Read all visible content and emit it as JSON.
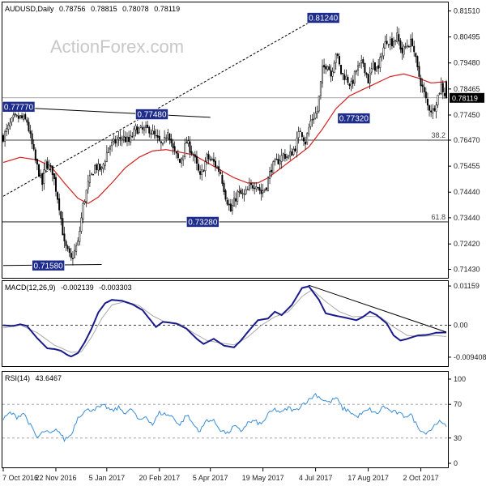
{
  "chart_data": [
    {
      "type": "candlestick",
      "title": "AUDUSD,Daily",
      "ohlc_readout": [
        "0.78756",
        "0.78815",
        "0.78078",
        "0.78119"
      ],
      "watermark": "ActionForex.com",
      "ylim": [
        0.7113,
        0.8181
      ],
      "y_ticks": [
        0.8151,
        0.80495,
        0.7948,
        0.78465,
        0.7745,
        0.7647,
        0.75455,
        0.7444,
        0.7344,
        0.7242,
        0.7143
      ],
      "y_tick_labels": [
        "0.81510",
        "0.80495",
        "0.79480",
        "0.78465",
        "0.77450",
        "0.76470",
        "0.75455",
        "0.74440",
        "0.73440",
        "0.72420",
        "0.71430"
      ],
      "last_price_label": "0.78119",
      "x_tick_labels": [
        "7 Oct 2016",
        "22 Nov 2016",
        "5 Jan 2017",
        "20 Feb 2017",
        "5 Apr 2017",
        "19 May 2017",
        "4 Jul 2017",
        "17 Aug 2017",
        "2 Oct 2017"
      ],
      "x_tick_index": [
        0,
        31,
        61,
        92,
        122,
        153,
        184,
        215,
        246
      ],
      "bar_count": 262,
      "close_anchors": [
        [
          0,
          0.766
        ],
        [
          6,
          0.773
        ],
        [
          10,
          0.7735
        ],
        [
          14,
          0.772
        ],
        [
          19,
          0.7565
        ],
        [
          23,
          0.7475
        ],
        [
          25,
          0.756
        ],
        [
          29,
          0.7525
        ],
        [
          33,
          0.739
        ],
        [
          36,
          0.724
        ],
        [
          40,
          0.718
        ],
        [
          44,
          0.7245
        ],
        [
          47,
          0.739
        ],
        [
          50,
          0.7475
        ],
        [
          54,
          0.7545
        ],
        [
          58,
          0.753
        ],
        [
          62,
          0.762
        ],
        [
          66,
          0.764
        ],
        [
          70,
          0.766
        ],
        [
          74,
          0.764
        ],
        [
          78,
          0.769
        ],
        [
          82,
          0.7685
        ],
        [
          86,
          0.769
        ],
        [
          90,
          0.7655
        ],
        [
          94,
          0.762
        ],
        [
          97,
          0.769
        ],
        [
          100,
          0.761
        ],
        [
          104,
          0.756
        ],
        [
          108,
          0.764
        ],
        [
          112,
          0.759
        ],
        [
          116,
          0.75
        ],
        [
          120,
          0.758
        ],
        [
          124,
          0.756
        ],
        [
          128,
          0.752
        ],
        [
          131,
          0.743
        ],
        [
          134,
          0.737
        ],
        [
          138,
          0.744
        ],
        [
          142,
          0.743
        ],
        [
          145,
          0.746
        ],
        [
          149,
          0.748
        ],
        [
          152,
          0.744
        ],
        [
          155,
          0.747
        ],
        [
          158,
          0.754
        ],
        [
          161,
          0.756
        ],
        [
          165,
          0.759
        ],
        [
          168,
          0.758
        ],
        [
          172,
          0.762
        ],
        [
          175,
          0.769
        ],
        [
          178,
          0.764
        ],
        [
          181,
          0.772
        ],
        [
          185,
          0.776
        ],
        [
          188,
          0.792
        ],
        [
          191,
          0.795
        ],
        [
          193,
          0.79
        ],
        [
          196,
          0.799
        ],
        [
          199,
          0.791
        ],
        [
          202,
          0.789
        ],
        [
          205,
          0.786
        ],
        [
          208,
          0.792
        ],
        [
          212,
          0.795
        ],
        [
          215,
          0.788
        ],
        [
          218,
          0.794
        ],
        [
          221,
          0.792
        ],
        [
          223,
          0.799
        ],
        [
          226,
          0.804
        ],
        [
          229,
          0.803
        ],
        [
          232,
          0.805
        ],
        [
          235,
          0.799
        ],
        [
          238,
          0.802
        ],
        [
          241,
          0.803
        ],
        [
          244,
          0.792
        ],
        [
          247,
          0.785
        ],
        [
          250,
          0.778
        ],
        [
          253,
          0.776
        ],
        [
          255,
          0.78
        ],
        [
          258,
          0.786
        ],
        [
          261,
          0.7812
        ]
      ],
      "ma_anchors": [
        [
          0,
          0.756
        ],
        [
          10,
          0.758
        ],
        [
          20,
          0.757
        ],
        [
          28,
          0.7545
        ],
        [
          36,
          0.748
        ],
        [
          44,
          0.742
        ],
        [
          50,
          0.74
        ],
        [
          56,
          0.7425
        ],
        [
          64,
          0.748
        ],
        [
          72,
          0.754
        ],
        [
          80,
          0.758
        ],
        [
          88,
          0.7605
        ],
        [
          96,
          0.761
        ],
        [
          104,
          0.76
        ],
        [
          112,
          0.759
        ],
        [
          120,
          0.756
        ],
        [
          128,
          0.753
        ],
        [
          136,
          0.75
        ],
        [
          144,
          0.748
        ],
        [
          150,
          0.748
        ],
        [
          156,
          0.75
        ],
        [
          164,
          0.754
        ],
        [
          172,
          0.758
        ],
        [
          180,
          0.762
        ],
        [
          188,
          0.769
        ],
        [
          196,
          0.777
        ],
        [
          204,
          0.782
        ],
        [
          212,
          0.7845
        ],
        [
          220,
          0.787
        ],
        [
          228,
          0.7895
        ],
        [
          236,
          0.7905
        ],
        [
          244,
          0.789
        ],
        [
          252,
          0.787
        ],
        [
          261,
          0.7875
        ]
      ],
      "series": [
        {
          "name": "Candles (OHLC)",
          "color": "#000000",
          "up_fill": "#ffffff",
          "down_fill": "#000000"
        },
        {
          "name": "Moving average",
          "color": "#d42020"
        }
      ],
      "fib_levels": [
        {
          "label": "38.2",
          "value": 0.7647
        },
        {
          "label": "61.8",
          "value": 0.7328
        }
      ],
      "horizontal_lines": [
        {
          "value": 0.7812,
          "color": "#888888"
        }
      ],
      "trendlines": [
        {
          "from": [
            0,
            0.7777
          ],
          "to": [
            122,
            0.7736
          ],
          "color": "#000000"
        },
        {
          "from": [
            0,
            0.7158
          ],
          "to": [
            58,
            0.7162
          ],
          "color": "#000000"
        },
        {
          "from": [
            0,
            0.7428
          ],
          "to": [
            185,
            0.8124
          ],
          "color": "#000000",
          "dashed": true
        }
      ],
      "callouts": [
        {
          "label": "0.77770",
          "index": 0,
          "value": 0.7777
        },
        {
          "label": "0.71580",
          "index": 17,
          "value": 0.7158
        },
        {
          "label": "0.77480",
          "index": 78,
          "value": 0.7748
        },
        {
          "label": "0.73280",
          "index": 108,
          "value": 0.7328
        },
        {
          "label": "0.81240",
          "index": 179,
          "value": 0.8124
        },
        {
          "label": "0.77320",
          "index": 197,
          "value": 0.7732
        }
      ],
      "label_color": "#1e2c8c"
    },
    {
      "type": "line",
      "title": "MACD(12,26,9)",
      "readout": [
        "-0.002139",
        "-0.003303"
      ],
      "ylim": [
        -0.0118,
        0.0128
      ],
      "y_ticks": [
        0.01159,
        0.0,
        -0.0094
      ],
      "y_tick_labels": [
        "0.01159",
        "0.00",
        "-0.009408"
      ],
      "macd_anchors": [
        [
          0,
          0.0
        ],
        [
          6,
          -0.0002
        ],
        [
          10,
          0.0003
        ],
        [
          14,
          -0.0002
        ],
        [
          20,
          -0.0038
        ],
        [
          26,
          -0.0068
        ],
        [
          30,
          -0.007
        ],
        [
          34,
          -0.0075
        ],
        [
          38,
          -0.0088
        ],
        [
          40,
          -0.0092
        ],
        [
          44,
          -0.0082
        ],
        [
          48,
          -0.005
        ],
        [
          52,
          -0.001
        ],
        [
          56,
          0.0038
        ],
        [
          60,
          0.0065
        ],
        [
          64,
          0.0075
        ],
        [
          70,
          0.0072
        ],
        [
          76,
          0.0062
        ],
        [
          82,
          0.0045
        ],
        [
          86,
          0.002
        ],
        [
          90,
          -0.0005
        ],
        [
          94,
          0.001
        ],
        [
          98,
          0.0008
        ],
        [
          102,
          0.0005
        ],
        [
          108,
          -0.001
        ],
        [
          114,
          -0.004
        ],
        [
          118,
          -0.0055
        ],
        [
          124,
          -0.004
        ],
        [
          130,
          -0.006
        ],
        [
          136,
          -0.0065
        ],
        [
          140,
          -0.0045
        ],
        [
          144,
          -0.002
        ],
        [
          150,
          0.0015
        ],
        [
          156,
          0.002
        ],
        [
          160,
          0.004
        ],
        [
          164,
          0.003
        ],
        [
          170,
          0.006
        ],
        [
          176,
          0.011
        ],
        [
          180,
          0.0115
        ],
        [
          186,
          0.0075
        ],
        [
          190,
          0.0035
        ],
        [
          196,
          0.0028
        ],
        [
          202,
          0.0022
        ],
        [
          208,
          0.0015
        ],
        [
          212,
          0.0025
        ],
        [
          216,
          0.004
        ],
        [
          220,
          0.003
        ],
        [
          226,
          0.0005
        ],
        [
          230,
          -0.003
        ],
        [
          234,
          -0.0045
        ],
        [
          238,
          -0.004
        ],
        [
          244,
          -0.003
        ],
        [
          250,
          -0.0028
        ],
        [
          255,
          -0.0022
        ],
        [
          261,
          -0.0021
        ]
      ],
      "signal_anchors": [
        [
          0,
          -0.0008
        ],
        [
          10,
          0.0001
        ],
        [
          20,
          -0.0022
        ],
        [
          30,
          -0.0058
        ],
        [
          40,
          -0.008
        ],
        [
          46,
          -0.0078
        ],
        [
          52,
          -0.0035
        ],
        [
          58,
          0.002
        ],
        [
          64,
          0.006
        ],
        [
          72,
          0.007
        ],
        [
          80,
          0.0058
        ],
        [
          88,
          0.0028
        ],
        [
          96,
          0.0008
        ],
        [
          104,
          0.0004
        ],
        [
          112,
          -0.0022
        ],
        [
          120,
          -0.0045
        ],
        [
          128,
          -0.0052
        ],
        [
          136,
          -0.0058
        ],
        [
          144,
          -0.0035
        ],
        [
          152,
          0.0
        ],
        [
          160,
          0.0025
        ],
        [
          168,
          0.004
        ],
        [
          176,
          0.0085
        ],
        [
          182,
          0.0105
        ],
        [
          190,
          0.007
        ],
        [
          198,
          0.004
        ],
        [
          206,
          0.0025
        ],
        [
          214,
          0.0027
        ],
        [
          222,
          0.0025
        ],
        [
          230,
          -0.0005
        ],
        [
          238,
          -0.003
        ],
        [
          246,
          -0.0033
        ],
        [
          254,
          -0.003
        ],
        [
          261,
          -0.0033
        ]
      ],
      "trendline": {
        "from": [
          180,
          0.0118
        ],
        "to": [
          261,
          -0.002
        ],
        "color": "#000000"
      },
      "series": [
        {
          "name": "MACD",
          "color": "#1a1a8c"
        },
        {
          "name": "Signal",
          "color": "#aaaaaa"
        }
      ]
    },
    {
      "type": "line",
      "title": "RSI(14)",
      "readout": [
        "43.6467"
      ],
      "ylim": [
        0,
        100
      ],
      "y_ticks": [
        100,
        70,
        30,
        0
      ],
      "y_tick_labels": [
        "100",
        "70",
        "30",
        "0"
      ],
      "rsi_anchors": [
        [
          0,
          52
        ],
        [
          4,
          60
        ],
        [
          8,
          55
        ],
        [
          12,
          60
        ],
        [
          16,
          45
        ],
        [
          20,
          30
        ],
        [
          24,
          38
        ],
        [
          28,
          35
        ],
        [
          32,
          40
        ],
        [
          36,
          28
        ],
        [
          40,
          34
        ],
        [
          44,
          55
        ],
        [
          48,
          62
        ],
        [
          52,
          64
        ],
        [
          56,
          66
        ],
        [
          60,
          68
        ],
        [
          64,
          62
        ],
        [
          68,
          66
        ],
        [
          72,
          60
        ],
        [
          76,
          64
        ],
        [
          80,
          50
        ],
        [
          84,
          56
        ],
        [
          88,
          46
        ],
        [
          92,
          60
        ],
        [
          96,
          58
        ],
        [
          100,
          55
        ],
        [
          104,
          45
        ],
        [
          108,
          58
        ],
        [
          112,
          46
        ],
        [
          116,
          38
        ],
        [
          120,
          52
        ],
        [
          124,
          50
        ],
        [
          128,
          40
        ],
        [
          132,
          35
        ],
        [
          136,
          44
        ],
        [
          140,
          38
        ],
        [
          144,
          48
        ],
        [
          148,
          50
        ],
        [
          152,
          46
        ],
        [
          156,
          58
        ],
        [
          160,
          64
        ],
        [
          164,
          60
        ],
        [
          168,
          66
        ],
        [
          172,
          62
        ],
        [
          176,
          70
        ],
        [
          180,
          75
        ],
        [
          184,
          82
        ],
        [
          188,
          76
        ],
        [
          192,
          72
        ],
        [
          196,
          78
        ],
        [
          200,
          65
        ],
        [
          204,
          62
        ],
        [
          208,
          55
        ],
        [
          212,
          60
        ],
        [
          216,
          64
        ],
        [
          220,
          58
        ],
        [
          224,
          68
        ],
        [
          228,
          62
        ],
        [
          232,
          60
        ],
        [
          236,
          56
        ],
        [
          240,
          58
        ],
        [
          244,
          44
        ],
        [
          248,
          36
        ],
        [
          252,
          40
        ],
        [
          256,
          50
        ],
        [
          261,
          43.6
        ]
      ],
      "series": [
        {
          "name": "RSI",
          "color": "#3a8dd8"
        }
      ]
    }
  ]
}
